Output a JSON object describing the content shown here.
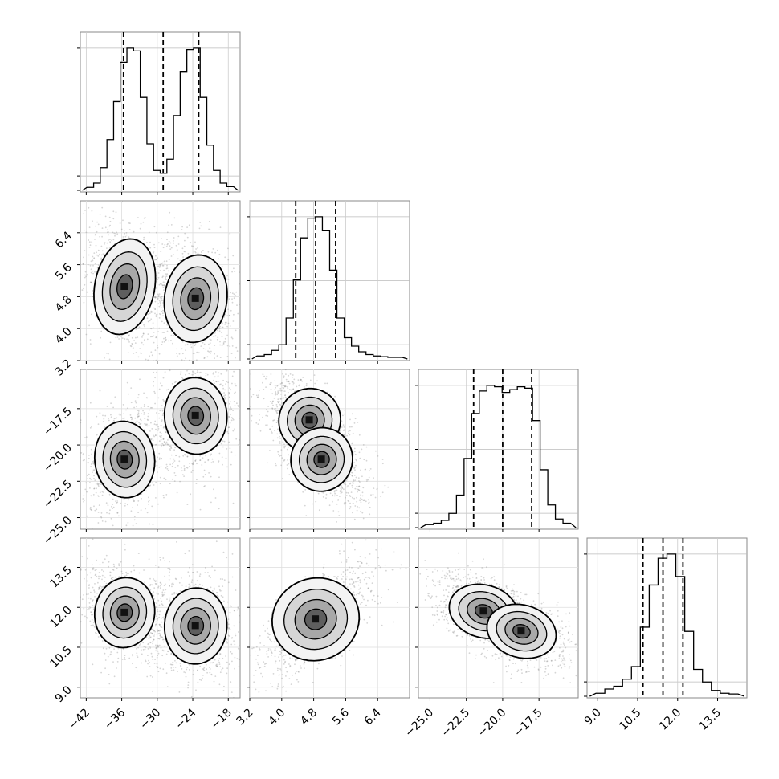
{
  "chart_data": {
    "type": "corner",
    "parameters": [
      {
        "range": [
          -43,
          -16
        ],
        "ticks": [
          "−42",
          "−36",
          "−30",
          "−24",
          "−18"
        ],
        "tick_values": [
          -42,
          -36,
          -30,
          -24,
          -18
        ],
        "quantile_lines": [
          -35.7,
          -29.0,
          -23.0
        ],
        "hist": [
          0.01,
          0.04,
          0.15,
          0.35,
          0.62,
          0.9,
          1.0,
          0.98,
          0.65,
          0.32,
          0.13,
          0.11,
          0.21,
          0.52,
          0.83,
          0.99,
          1.0,
          0.65,
          0.31,
          0.13,
          0.04,
          0.015
        ],
        "modes": [
          {
            "mx": -35.5,
            "my": 5.05,
            "sx": 2.3,
            "sy": 0.55,
            "rho": -0.3
          },
          {
            "mx": -23.5,
            "my": 4.7,
            "sx": 2.4,
            "sy": 0.5,
            "rho": -0.2
          }
        ]
      },
      {
        "range": [
          3.2,
          7.2
        ],
        "ticks": [
          "3.2",
          "4.0",
          "4.8",
          "5.6",
          "6.4"
        ],
        "tick_values": [
          3.2,
          4.0,
          4.8,
          5.6,
          6.4
        ],
        "quantile_lines": [
          4.35,
          4.85,
          5.35
        ],
        "hist": [
          0.01,
          0.02,
          0.05,
          0.09,
          0.28,
          0.55,
          0.85,
          0.99,
          1.0,
          0.9,
          0.62,
          0.28,
          0.14,
          0.08,
          0.04,
          0.02,
          0.01,
          0.005,
          0.0,
          0.0
        ]
      },
      {
        "range": [
          -25.8,
          -14.8
        ],
        "ticks": [
          "−25.0",
          "−22.5",
          "−20.0",
          "−17.5"
        ],
        "tick_values": [
          -25,
          -22.5,
          -20,
          -17.5
        ],
        "quantile_lines": [
          -22.0,
          -20.0,
          -18.0
        ],
        "hist": [
          0.01,
          0.02,
          0.04,
          0.09,
          0.22,
          0.48,
          0.8,
          0.96,
          1.0,
          0.99,
          0.95,
          0.97,
          0.99,
          0.98,
          0.75,
          0.4,
          0.15,
          0.05,
          0.02
        ]
      },
      {
        "range": [
          8.6,
          14.6
        ],
        "ticks": [
          "9.0",
          "10.5",
          "12.0",
          "13.5"
        ],
        "tick_values": [
          9,
          10.5,
          12,
          13.5
        ],
        "quantile_lines": [
          10.7,
          11.45,
          12.2
        ],
        "hist": [
          0.01,
          0.04,
          0.06,
          0.11,
          0.2,
          0.48,
          0.78,
          0.97,
          1.0,
          0.84,
          0.45,
          0.18,
          0.09,
          0.03,
          0.01,
          0.005
        ]
      }
    ],
    "pairs": [
      {
        "row": 1,
        "col": 0,
        "modes": [
          {
            "mx": -35.5,
            "my": 5.05,
            "sx": 2.3,
            "sy": 0.55,
            "rho": -0.35
          },
          {
            "mx": -23.5,
            "my": 4.75,
            "sx": 2.4,
            "sy": 0.5,
            "rho": -0.25
          }
        ]
      },
      {
        "row": 2,
        "col": 0,
        "modes": [
          {
            "mx": -35.5,
            "my": -21.0,
            "sx": 2.3,
            "sy": 1.2,
            "rho": 0.2
          },
          {
            "mx": -23.5,
            "my": -18.0,
            "sx": 2.4,
            "sy": 1.2,
            "rho": 0.15
          }
        ]
      },
      {
        "row": 2,
        "col": 1,
        "modes": [
          {
            "mx": 4.7,
            "my": -18.3,
            "sx": 0.35,
            "sy": 1.0,
            "rho": -0.6
          },
          {
            "mx": 5.0,
            "my": -21.0,
            "sx": 0.35,
            "sy": 1.0,
            "rho": -0.6
          }
        ]
      },
      {
        "row": 3,
        "col": 0,
        "modes": [
          {
            "mx": -35.5,
            "my": 11.8,
            "sx": 2.3,
            "sy": 0.6,
            "rho": -0.3
          },
          {
            "mx": -23.5,
            "my": 11.3,
            "sx": 2.4,
            "sy": 0.65,
            "rho": -0.1
          }
        ]
      },
      {
        "row": 3,
        "col": 1,
        "modes": [
          {
            "mx": 4.85,
            "my": 11.55,
            "sx": 0.5,
            "sy": 0.7,
            "rho": 0.7
          }
        ]
      },
      {
        "row": 3,
        "col": 2,
        "modes": [
          {
            "mx": -21.3,
            "my": 11.85,
            "sx": 1.1,
            "sy": 0.45,
            "rho": -0.5
          },
          {
            "mx": -18.7,
            "my": 11.1,
            "sx": 1.1,
            "sy": 0.45,
            "rho": -0.5
          }
        ]
      }
    ],
    "title": "",
    "grid": true
  }
}
